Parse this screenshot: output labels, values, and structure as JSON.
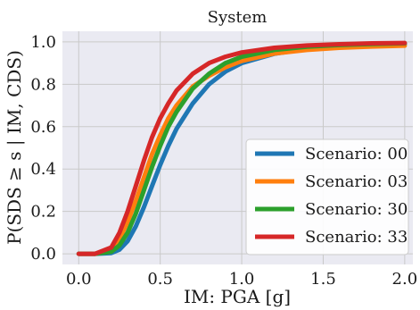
{
  "chart_data": {
    "type": "line",
    "title": "System",
    "xlabel": "IM: PGA [g]",
    "ylabel": "P(SDS ≥ s | IM, CDS)",
    "xlim": [
      -0.1,
      2.05
    ],
    "ylim": [
      -0.05,
      1.05
    ],
    "xticks": [
      0.0,
      0.5,
      1.0,
      1.5,
      2.0
    ],
    "xtick_labels": [
      "0.0",
      "0.5",
      "1.0",
      "1.5",
      "2.0"
    ],
    "yticks": [
      0.0,
      0.2,
      0.4,
      0.6,
      0.8,
      1.0
    ],
    "ytick_labels": [
      "0.0",
      "0.2",
      "0.4",
      "0.6",
      "0.8",
      "1.0"
    ],
    "grid": true,
    "legend_position": "bottom-right",
    "x": [
      0.0,
      0.1,
      0.2,
      0.25,
      0.3,
      0.35,
      0.4,
      0.45,
      0.5,
      0.55,
      0.6,
      0.7,
      0.8,
      0.9,
      1.0,
      1.2,
      1.4,
      1.6,
      1.8,
      2.0
    ],
    "series": [
      {
        "name": "Scenario: 00",
        "color": "#1f77b4",
        "values": [
          0.0,
          0.0,
          0.004,
          0.02,
          0.06,
          0.13,
          0.22,
          0.32,
          0.42,
          0.51,
          0.59,
          0.71,
          0.8,
          0.86,
          0.9,
          0.944,
          0.966,
          0.978,
          0.985,
          0.989
        ]
      },
      {
        "name": "Scenario: 03",
        "color": "#ff7f0e",
        "values": [
          0.0,
          0.0,
          0.02,
          0.07,
          0.15,
          0.25,
          0.36,
          0.47,
          0.56,
          0.64,
          0.7,
          0.79,
          0.84,
          0.88,
          0.91,
          0.945,
          0.962,
          0.972,
          0.978,
          0.982
        ]
      },
      {
        "name": "Scenario: 30",
        "color": "#2ca02c",
        "values": [
          0.0,
          0.0,
          0.01,
          0.04,
          0.1,
          0.19,
          0.3,
          0.41,
          0.51,
          0.6,
          0.67,
          0.78,
          0.85,
          0.9,
          0.93,
          0.962,
          0.977,
          0.985,
          0.99,
          0.993
        ]
      },
      {
        "name": "Scenario: 33",
        "color": "#d62728",
        "values": [
          0.0,
          0.0,
          0.03,
          0.1,
          0.2,
          0.32,
          0.44,
          0.55,
          0.64,
          0.71,
          0.77,
          0.85,
          0.9,
          0.93,
          0.95,
          0.972,
          0.983,
          0.989,
          0.993,
          0.995
        ]
      }
    ]
  }
}
